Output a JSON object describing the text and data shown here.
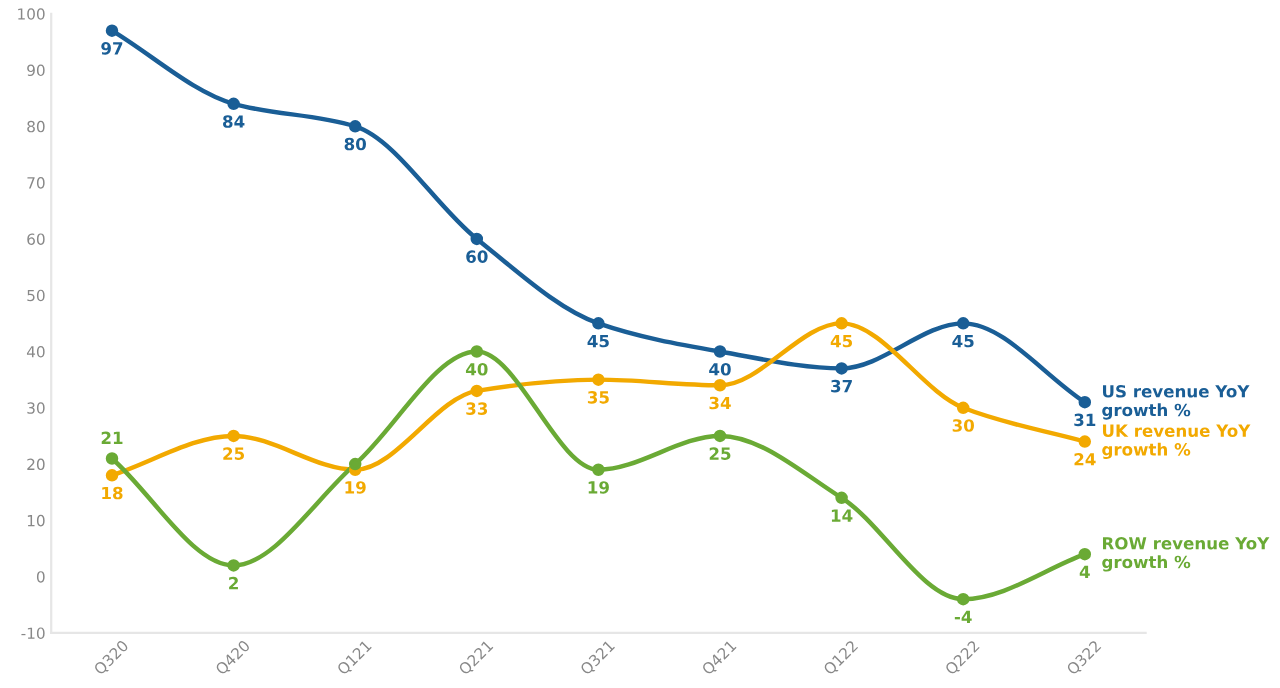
{
  "chart_data": {
    "type": "line",
    "categories": [
      "Q320",
      "Q420",
      "Q121",
      "Q221",
      "Q321",
      "Q421",
      "Q122",
      "Q222",
      "Q322"
    ],
    "series": [
      {
        "name": "US revenue YoY growth %",
        "color": "#1a5e96",
        "values": [
          97,
          84,
          80,
          60,
          45,
          40,
          37,
          45,
          31
        ],
        "value_labels": [
          "97",
          "84",
          "80",
          "60",
          "45",
          "40",
          "37",
          "45",
          "31"
        ]
      },
      {
        "name": "UK revenue YoY growth %",
        "color": "#f2a900",
        "values": [
          18,
          25,
          19,
          33,
          35,
          34,
          45,
          30,
          24
        ],
        "value_labels": [
          "18",
          "25",
          "19",
          "33",
          "35",
          "34",
          "45",
          "30",
          "24"
        ]
      },
      {
        "name": "ROW revenue YoY growth %",
        "color": "#6aaa35",
        "values": [
          21,
          2,
          20,
          40,
          19,
          25,
          14,
          -4,
          4
        ],
        "value_labels": [
          "21",
          "2",
          null,
          "40",
          "19",
          "25",
          "14",
          "-4",
          "4"
        ]
      }
    ],
    "ylim": [
      -10,
      100
    ],
    "yticks": [
      -10,
      0,
      10,
      20,
      30,
      40,
      50,
      60,
      70,
      80,
      90,
      100
    ],
    "grid": false,
    "marker": "circle",
    "line_style": "solid"
  }
}
